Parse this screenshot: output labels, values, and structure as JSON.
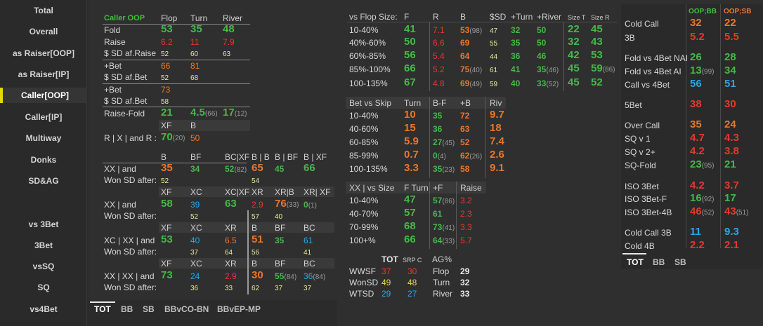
{
  "sidebar": {
    "items": [
      {
        "label": "Total"
      },
      {
        "label": "Overall"
      },
      {
        "label": "as Raiser[OOP]"
      },
      {
        "label": "as Raiser[IP]"
      },
      {
        "label": "Caller[OOP]"
      },
      {
        "label": "Caller[IP]"
      },
      {
        "label": "Multiway"
      },
      {
        "label": "Donks"
      },
      {
        "label": "SD&AG"
      },
      {
        "label": "vs 3Bet"
      },
      {
        "label": "3Bet"
      },
      {
        "label": "vsSQ"
      },
      {
        "label": "SQ"
      },
      {
        "label": "vs4Bet"
      }
    ],
    "active": "Caller[OOP]",
    "accent": "#e6d800"
  },
  "left": {
    "title": "Caller OOP",
    "h": [
      "Flop",
      "Turn",
      "River"
    ],
    "fold": {
      "label": "Fold",
      "v": [
        "53",
        "35",
        "48"
      ]
    },
    "raise": {
      "label": "Raise",
      "v": [
        "6.2",
        "11",
        "7.9"
      ]
    },
    "sdraise": {
      "label": "$ SD af.Raise",
      "v": [
        "52",
        "60",
        "63"
      ]
    },
    "bet": {
      "label": "+Bet",
      "v": [
        "66",
        "81"
      ]
    },
    "sdbet": {
      "label": "$ SD af.Bet",
      "v": [
        "52",
        "68"
      ]
    },
    "bet2": {
      "label": "+Bet",
      "v": [
        "73"
      ]
    },
    "sdbet2": {
      "label": "$ SD af.Bet",
      "v": [
        "58"
      ]
    },
    "raisefold": {
      "label": "Raise-Fold",
      "v1": "21",
      "v2": "4.5",
      "v2s": "(66)",
      "v3": "17",
      "v3s": "(12)"
    },
    "rxh": [
      "XF",
      "B"
    ],
    "rx": {
      "label": "R | X | and R :",
      "v1": "70",
      "v1s": "(20)",
      "v2": "50"
    },
    "g1": {
      "h": [
        "B",
        "BF",
        "BC|XF",
        "B | B",
        "B | BF",
        "B | XF"
      ],
      "l1": "XX | and",
      "l2": "Won SD after:",
      "v": [
        "35",
        "34",
        "52",
        "65",
        "45",
        "66"
      ],
      "vs": [
        "",
        "",
        "(82)",
        "",
        "",
        ""
      ],
      "sd": [
        "52",
        "",
        "",
        "54",
        "",
        ""
      ]
    },
    "g2": {
      "h": [
        "XF",
        "XC",
        "XC|XF",
        "XR",
        "XR|B",
        "XR| XF"
      ],
      "l1": "XX | and",
      "l2": "Won SD after:",
      "v": [
        "58",
        "39",
        "63",
        "2.9",
        "76",
        "0"
      ],
      "vs": [
        "",
        "",
        "",
        "",
        "(33)",
        "(1)"
      ],
      "sd": [
        "",
        "52",
        "",
        "57",
        "40",
        ""
      ]
    },
    "g3": {
      "h": [
        "XF",
        "XC",
        "XR",
        "B",
        "BF",
        "BC"
      ],
      "l1": "XC | XX | and",
      "l2": "Won SD after:",
      "v": [
        "53",
        "40",
        "6.5",
        "51",
        "35",
        "61"
      ],
      "sd": [
        "",
        "37",
        "64",
        "56",
        "",
        "41"
      ]
    },
    "g4": {
      "h": [
        "XF",
        "XC",
        "XR",
        "B",
        "BF",
        "BC"
      ],
      "l1": "XX | XX | and",
      "l2": "Won SD after:",
      "v": [
        "73",
        "24",
        "2.9",
        "30",
        "55",
        "36"
      ],
      "vs": [
        "",
        "",
        "",
        "",
        "(84)",
        "(84)"
      ],
      "sd": [
        "",
        "36",
        "33",
        "62",
        "37",
        "37"
      ]
    }
  },
  "tabs_bottom": [
    "TOT",
    "BB",
    "SB",
    "BBvCO-BN",
    "BBvEP-MP"
  ],
  "mid": {
    "t1": {
      "h": [
        "vs Flop Size:",
        "F",
        "R",
        "B",
        "$SD",
        "+Turn",
        "+River",
        "Size T",
        "Size R"
      ],
      "rows": [
        {
          "l": "10-40%",
          "f": "41",
          "r": "7.1",
          "b": "53",
          "bs": "(98)",
          "sd": "47",
          "t": "32",
          "rv": "50",
          "rvs": "",
          "st": "22",
          "sr": "45",
          "srs": ""
        },
        {
          "l": "40%-60%",
          "f": "50",
          "r": "6.6",
          "b": "69",
          "bs": "",
          "sd": "55",
          "t": "35",
          "rv": "50",
          "rvs": "",
          "st": "32",
          "sr": "43",
          "srs": ""
        },
        {
          "l": "60%-85%",
          "f": "56",
          "r": "5.4",
          "b": "64",
          "bs": "",
          "sd": "44",
          "t": "36",
          "rv": "46",
          "rvs": "",
          "st": "42",
          "sr": "53",
          "srs": ""
        },
        {
          "l": "85%-100%",
          "f": "66",
          "r": "5.2",
          "b": "75",
          "bs": "(40)",
          "sd": "61",
          "t": "41",
          "rv": "35",
          "rvs": "(46)",
          "st": "45",
          "sr": "59",
          "srs": "(86)"
        },
        {
          "l": "100-135%",
          "f": "67",
          "r": "4.8",
          "b": "69",
          "bs": "(49)",
          "sd": "59",
          "t": "40",
          "rv": "33",
          "rvs": "(52)",
          "st": "45",
          "sr": "52",
          "srs": ""
        }
      ]
    },
    "t2": {
      "h": [
        "Bet vs Skip",
        "Turn",
        "B-F",
        "+B",
        "Riv"
      ],
      "rows": [
        {
          "l": "10-40%",
          "t": "10",
          "bf": "35",
          "bfs": "",
          "b": "72",
          "bs": "",
          "r": "9.7"
        },
        {
          "l": "40-60%",
          "t": "15",
          "bf": "36",
          "bfs": "",
          "b": "63",
          "bs": "",
          "r": "18"
        },
        {
          "l": "60-85%",
          "t": "5.9",
          "bf": "27",
          "bfs": "(45)",
          "b": "52",
          "bs": "",
          "r": "7.4"
        },
        {
          "l": "85-99%",
          "t": "0.7",
          "bf": "0",
          "bfs": "(4)",
          "b": "62",
          "bs": "(26)",
          "r": "2.6"
        },
        {
          "l": "100-135%",
          "t": "3.3",
          "bf": "35",
          "bfs": "(23)",
          "b": "58",
          "bs": "",
          "r": "9.1"
        }
      ]
    },
    "t3": {
      "h": [
        "XX | vs Size",
        "F Turn",
        "+F",
        "Raise"
      ],
      "rows": [
        {
          "l": "10-40%",
          "f": "47",
          "p": "57",
          "ps": "(86)",
          "r": "3.2"
        },
        {
          "l": "40-70%",
          "f": "57",
          "p": "61",
          "ps": "",
          "r": "2.3"
        },
        {
          "l": "70-99%",
          "f": "68",
          "p": "73",
          "ps": "(41)",
          "r": "3.3"
        },
        {
          "l": "100+%",
          "f": "66",
          "p": "64",
          "ps": "(33)",
          "r": "5.7"
        }
      ]
    },
    "t4": {
      "h1": "TOT",
      "h2": "SRP C",
      "h3": "AG%",
      "rows": [
        {
          "l": "WWSF",
          "a": "37",
          "b": "30",
          "c": "Flop",
          "d": "29"
        },
        {
          "l": "WonSD",
          "a": "49",
          "b": "48",
          "c": "Turn",
          "d": "32"
        },
        {
          "l": "WTSD",
          "a": "29",
          "b": "27",
          "c": "River",
          "d": "33"
        }
      ]
    }
  },
  "right": {
    "h": [
      "OOP;BB",
      "OOP;SB"
    ],
    "rows": [
      {
        "l": "Cold Call",
        "a": "32",
        "as": "",
        "b": "22",
        "bs": ""
      },
      {
        "l": "3B",
        "a": "5.2",
        "as": "",
        "b": "5.5",
        "bs": ""
      },
      {
        "l": "Fold vs 4Bet NAI",
        "a": "26",
        "as": "",
        "b": "28",
        "bs": ""
      },
      {
        "l": "Fold vs 4Bet AI",
        "a": "13",
        "as": "(99)",
        "b": "34",
        "bs": ""
      },
      {
        "l": "Call vs 4Bet",
        "a": "56",
        "as": "",
        "b": "51",
        "bs": ""
      },
      {
        "l": "5Bet",
        "a": "38",
        "as": "",
        "b": "30",
        "bs": ""
      },
      {
        "l": "Over Call",
        "a": "35",
        "as": "",
        "b": "24",
        "bs": ""
      },
      {
        "l": "SQ v 1",
        "a": "4.7",
        "as": "",
        "b": "4.3",
        "bs": ""
      },
      {
        "l": "SQ v 2+",
        "a": "4.2",
        "as": "",
        "b": "3.8",
        "bs": ""
      },
      {
        "l": "SQ-Fold",
        "a": "23",
        "as": "(95)",
        "b": "21",
        "bs": ""
      },
      {
        "l": "ISO 3Bet",
        "a": "4.2",
        "as": "",
        "b": "3.7",
        "bs": ""
      },
      {
        "l": "ISO 3Bet-F",
        "a": "16",
        "as": "(92)",
        "b": "17",
        "bs": ""
      },
      {
        "l": "ISO 3Bet-4B",
        "a": "46",
        "as": "(52)",
        "b": "43",
        "bs": "(51)"
      },
      {
        "l": "Cold Call 3B",
        "a": "11",
        "as": "",
        "b": "9.3",
        "bs": ""
      },
      {
        "l": "Cold 4B",
        "a": "2.2",
        "as": "",
        "b": "2.1",
        "bs": ""
      }
    ],
    "tabs": [
      "TOT",
      "BB",
      "SB"
    ]
  }
}
